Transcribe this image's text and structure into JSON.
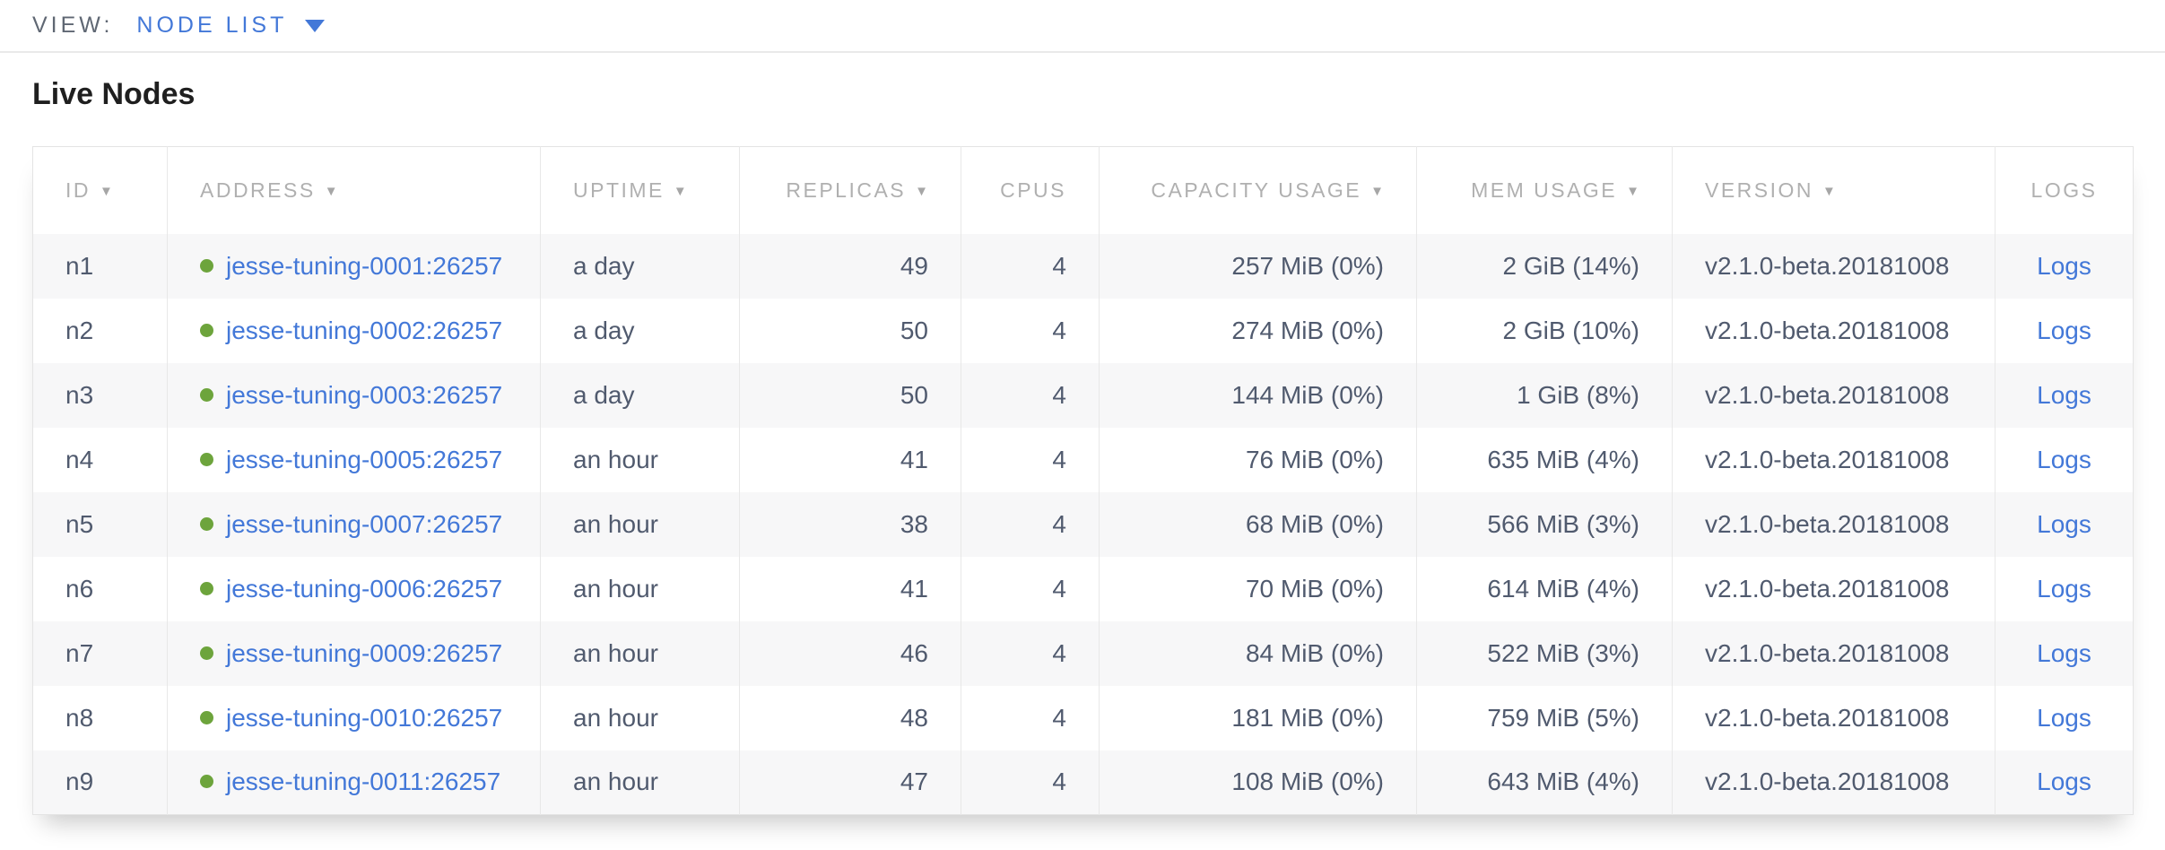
{
  "view_bar": {
    "label": "VIEW:",
    "selected": "NODE LIST"
  },
  "page": {
    "title": "Live Nodes"
  },
  "icons": {
    "sort_desc": "▼",
    "status_dot": "healthy-dot"
  },
  "colors": {
    "accent_blue": "#4378d8",
    "healthy_green": "#6da43c",
    "header_gray": "#b0b0b0",
    "body_slate": "#505a6e",
    "muted_slate": "#5f6773",
    "stripe": "#f7f7f8"
  },
  "table": {
    "columns": [
      {
        "key": "id",
        "label": "ID",
        "sortable": true,
        "align": "left"
      },
      {
        "key": "address",
        "label": "ADDRESS",
        "sortable": true,
        "align": "left"
      },
      {
        "key": "uptime",
        "label": "UPTIME",
        "sortable": true,
        "align": "left"
      },
      {
        "key": "replicas",
        "label": "REPLICAS",
        "sortable": true,
        "align": "right"
      },
      {
        "key": "cpus",
        "label": "CPUS",
        "sortable": false,
        "align": "right"
      },
      {
        "key": "capacity",
        "label": "CAPACITY USAGE",
        "sortable": true,
        "align": "right"
      },
      {
        "key": "mem",
        "label": "MEM USAGE",
        "sortable": true,
        "align": "right"
      },
      {
        "key": "version",
        "label": "VERSION",
        "sortable": true,
        "align": "left"
      },
      {
        "key": "logs",
        "label": "LOGS",
        "sortable": false,
        "align": "center"
      }
    ],
    "rows": [
      {
        "id": "n1",
        "address": "jesse-tuning-0001:26257",
        "status": "healthy",
        "uptime": "a day",
        "replicas": "49",
        "cpus": "4",
        "capacity": "257 MiB (0%)",
        "mem": "2 GiB (14%)",
        "version": "v2.1.0-beta.20181008",
        "logs": "Logs"
      },
      {
        "id": "n2",
        "address": "jesse-tuning-0002:26257",
        "status": "healthy",
        "uptime": "a day",
        "replicas": "50",
        "cpus": "4",
        "capacity": "274 MiB (0%)",
        "mem": "2 GiB (10%)",
        "version": "v2.1.0-beta.20181008",
        "logs": "Logs"
      },
      {
        "id": "n3",
        "address": "jesse-tuning-0003:26257",
        "status": "healthy",
        "uptime": "a day",
        "replicas": "50",
        "cpus": "4",
        "capacity": "144 MiB (0%)",
        "mem": "1 GiB (8%)",
        "version": "v2.1.0-beta.20181008",
        "logs": "Logs"
      },
      {
        "id": "n4",
        "address": "jesse-tuning-0005:26257",
        "status": "healthy",
        "uptime": "an hour",
        "replicas": "41",
        "cpus": "4",
        "capacity": "76 MiB (0%)",
        "mem": "635 MiB (4%)",
        "version": "v2.1.0-beta.20181008",
        "logs": "Logs"
      },
      {
        "id": "n5",
        "address": "jesse-tuning-0007:26257",
        "status": "healthy",
        "uptime": "an hour",
        "replicas": "38",
        "cpus": "4",
        "capacity": "68 MiB (0%)",
        "mem": "566 MiB (3%)",
        "version": "v2.1.0-beta.20181008",
        "logs": "Logs"
      },
      {
        "id": "n6",
        "address": "jesse-tuning-0006:26257",
        "status": "healthy",
        "uptime": "an hour",
        "replicas": "41",
        "cpus": "4",
        "capacity": "70 MiB (0%)",
        "mem": "614 MiB (4%)",
        "version": "v2.1.0-beta.20181008",
        "logs": "Logs"
      },
      {
        "id": "n7",
        "address": "jesse-tuning-0009:26257",
        "status": "healthy",
        "uptime": "an hour",
        "replicas": "46",
        "cpus": "4",
        "capacity": "84 MiB (0%)",
        "mem": "522 MiB (3%)",
        "version": "v2.1.0-beta.20181008",
        "logs": "Logs"
      },
      {
        "id": "n8",
        "address": "jesse-tuning-0010:26257",
        "status": "healthy",
        "uptime": "an hour",
        "replicas": "48",
        "cpus": "4",
        "capacity": "181 MiB (0%)",
        "mem": "759 MiB (5%)",
        "version": "v2.1.0-beta.20181008",
        "logs": "Logs"
      },
      {
        "id": "n9",
        "address": "jesse-tuning-0011:26257",
        "status": "healthy",
        "uptime": "an hour",
        "replicas": "47",
        "cpus": "4",
        "capacity": "108 MiB (0%)",
        "mem": "643 MiB (4%)",
        "version": "v2.1.0-beta.20181008",
        "logs": "Logs"
      }
    ]
  }
}
